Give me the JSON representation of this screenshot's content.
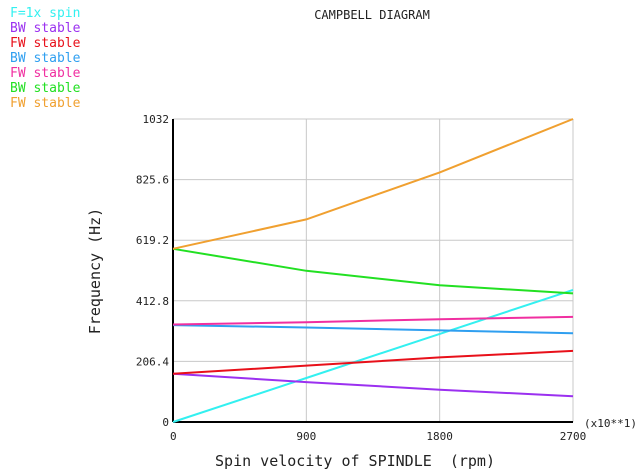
{
  "chart_data": {
    "type": "line",
    "title": "CAMPBELL DIAGRAM",
    "xlabel": "Spin velocity of SPINDLE  (rpm)",
    "ylabel": "Frequency (Hz)",
    "x_multiplier": "(x10**1)",
    "xlim": [
      0,
      2700
    ],
    "ylim": [
      0,
      1032
    ],
    "x_ticks": [
      "0",
      "900",
      "1800",
      "2700"
    ],
    "y_ticks": [
      "0",
      "206.4",
      "412.8",
      "619.2",
      "825.6",
      "1032"
    ],
    "grid": true,
    "legend_position": "top-left",
    "series": [
      {
        "name": "F=1x spin",
        "color": "#33f0f0",
        "points": [
          [
            0,
            0
          ],
          [
            900,
            150
          ],
          [
            1800,
            300
          ],
          [
            2700,
            450
          ]
        ]
      },
      {
        "name": "BW stable",
        "color": "#9b30f0",
        "points": [
          [
            0,
            164
          ],
          [
            900,
            136
          ],
          [
            1800,
            110
          ],
          [
            2700,
            88
          ]
        ]
      },
      {
        "name": "FW stable",
        "color": "#e8101a",
        "points": [
          [
            0,
            164
          ],
          [
            900,
            192
          ],
          [
            1800,
            220
          ],
          [
            2700,
            242
          ]
        ]
      },
      {
        "name": "BW stable",
        "color": "#2f9ff0",
        "points": [
          [
            0,
            330
          ],
          [
            900,
            322
          ],
          [
            1800,
            312
          ],
          [
            2700,
            302
          ]
        ]
      },
      {
        "name": "FW stable",
        "color": "#f02fa0",
        "points": [
          [
            0,
            332
          ],
          [
            900,
            340
          ],
          [
            1800,
            350
          ],
          [
            2700,
            358
          ]
        ]
      },
      {
        "name": "BW stable",
        "color": "#22e022",
        "points": [
          [
            0,
            590
          ],
          [
            900,
            515
          ],
          [
            1800,
            466
          ],
          [
            2700,
            438
          ]
        ]
      },
      {
        "name": "FW stable",
        "color": "#f0a030",
        "points": [
          [
            0,
            590
          ],
          [
            900,
            690
          ],
          [
            1800,
            850
          ],
          [
            2700,
            1032
          ]
        ]
      }
    ]
  }
}
